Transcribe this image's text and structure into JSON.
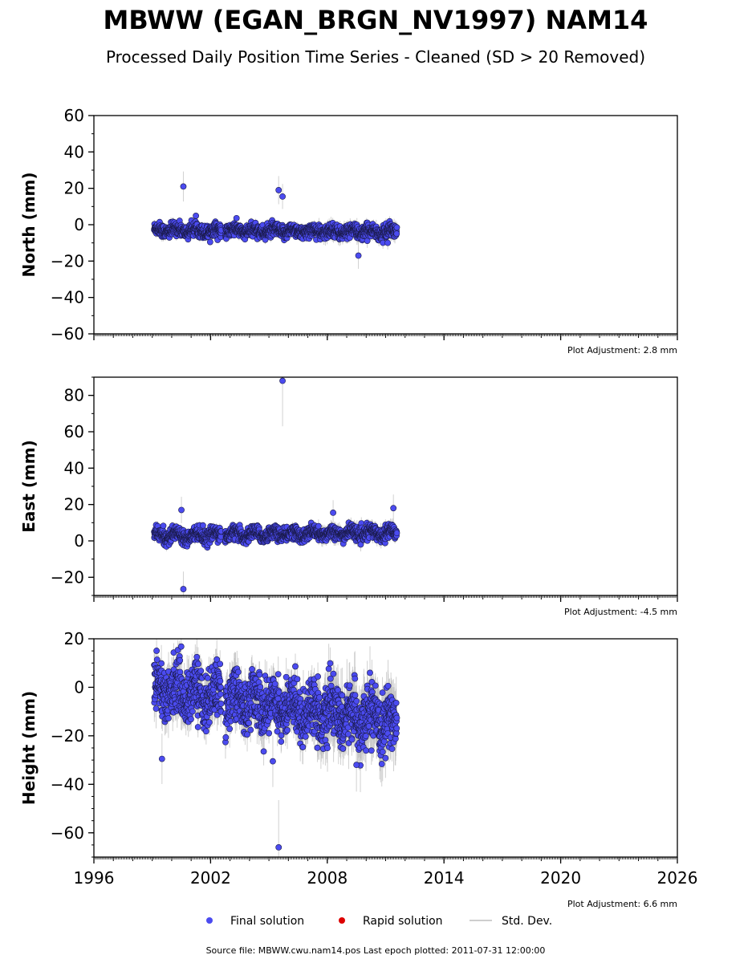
{
  "title": "MBWW (EGAN_BRGN_NV1997) NAM14",
  "subtitle": "Processed Daily Position Time Series - Cleaned (SD > 20 Removed)",
  "footer": "Source file: MBWW.cwu.nam14.pos  Last epoch plotted: 2011-07-31 12:00:00",
  "legend": {
    "final": "Final solution",
    "rapid": "Rapid solution",
    "std": "Std. Dev."
  },
  "colors": {
    "final": "#4b4bf0",
    "rapid": "#dd0000",
    "std": "#bdbdbd"
  },
  "chart_data": [
    {
      "type": "scatter",
      "ylabel": "North (mm)",
      "adjustment": "Plot Adjustment: 2.8 mm",
      "xlim": [
        1996,
        2026
      ],
      "ylim": [
        -60,
        60
      ],
      "yticks": [
        60,
        40,
        20,
        0,
        -20,
        -40,
        -60
      ],
      "ytick_labels": [
        "60",
        "40",
        "20",
        "0",
        "−20",
        "−40",
        "−60"
      ],
      "xticks": [
        1996,
        2002,
        2008,
        2014,
        2020,
        2026
      ],
      "xtick_labels": [],
      "data_start": 1999.1,
      "data_end": 2011.58,
      "trend_start": -3,
      "trend_end": -4,
      "noise_sd": 1.8,
      "seasonal_amp": 1.2,
      "outliers": [
        [
          2000.6,
          21
        ],
        [
          2005.5,
          19
        ],
        [
          2005.7,
          15.5
        ],
        [
          2009.6,
          -17
        ]
      ],
      "series": [
        {
          "name": "Final solution",
          "values": []
        }
      ]
    },
    {
      "type": "scatter",
      "ylabel": "East (mm)",
      "adjustment": "Plot Adjustment: -4.5 mm",
      "xlim": [
        1996,
        2026
      ],
      "ylim": [
        -30,
        90
      ],
      "yticks": [
        80,
        60,
        40,
        20,
        0,
        -20
      ],
      "ytick_labels": [
        "80",
        "60",
        "40",
        "20",
        "0",
        "−20"
      ],
      "xticks": [
        1996,
        2002,
        2008,
        2014,
        2020,
        2026
      ],
      "xtick_labels": [],
      "data_start": 1999.1,
      "data_end": 2011.58,
      "trend_start": 3,
      "trend_end": 4.5,
      "noise_sd": 1.8,
      "seasonal_amp": 1.5,
      "outliers": [
        [
          2000.5,
          17
        ],
        [
          2000.6,
          -26.5
        ],
        [
          2005.7,
          88
        ],
        [
          2008.3,
          15.5
        ],
        [
          2011.4,
          18
        ]
      ],
      "series": [
        {
          "name": "Final solution",
          "values": []
        }
      ]
    },
    {
      "type": "scatter",
      "ylabel": "Height (mm)",
      "adjustment": "Plot Adjustment: 6.6 mm",
      "xlim": [
        1996,
        2026
      ],
      "ylim": [
        -70,
        20
      ],
      "yticks": [
        20,
        0,
        -20,
        -40,
        -60
      ],
      "ytick_labels": [
        "20",
        "0",
        "−20",
        "−40",
        "−60"
      ],
      "xticks": [
        1996,
        2002,
        2008,
        2014,
        2020,
        2026
      ],
      "xtick_labels": [
        "1996",
        "2002",
        "2008",
        "2014",
        "2020",
        "2026"
      ],
      "data_start": 1999.1,
      "data_end": 2011.58,
      "trend_start": 0,
      "trend_end": -15,
      "noise_sd": 5.5,
      "seasonal_amp": 4,
      "outliers": [
        [
          1999.5,
          -29.5
        ],
        [
          2005.2,
          -30.5
        ],
        [
          2005.5,
          -66
        ],
        [
          2009.5,
          -32
        ]
      ],
      "series": [
        {
          "name": "Final solution",
          "values": []
        }
      ]
    }
  ]
}
